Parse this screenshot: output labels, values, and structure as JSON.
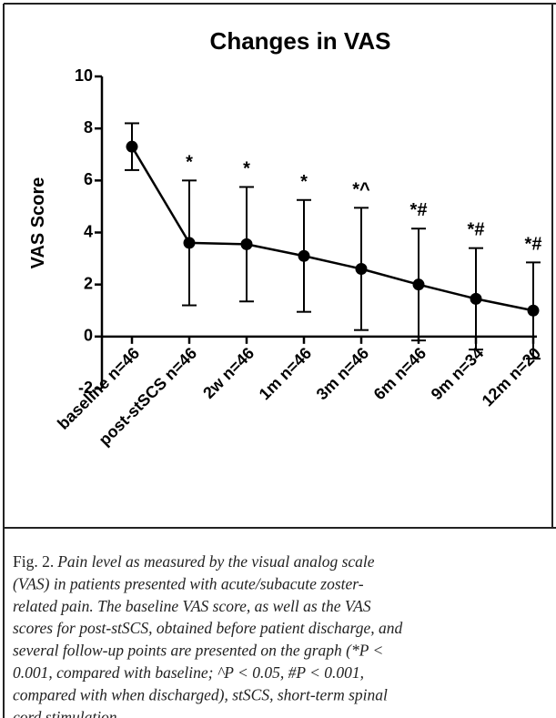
{
  "chart_data": {
    "type": "line",
    "title": "Changes in VAS",
    "y_label": "VAS Score",
    "categories": [
      "baseline n=46",
      "post-stSCS n=46",
      "2w n=46",
      "1m n=46",
      "3m n=46",
      "6m n=46",
      "9m n=34",
      "12m n=20"
    ],
    "values": [
      7.3,
      3.6,
      3.55,
      3.1,
      2.6,
      2.0,
      1.45,
      1.0
    ],
    "errors": [
      0.9,
      2.4,
      2.2,
      2.15,
      2.35,
      2.15,
      1.95,
      1.85
    ],
    "point_labels": [
      null,
      "*",
      "*",
      "*",
      "*^",
      "*#",
      "*#",
      "*#"
    ],
    "color": "#000000",
    "ylim": [
      -2,
      10
    ],
    "yticks": [
      10,
      8,
      6,
      4,
      2,
      0,
      -2
    ],
    "grid": false
  },
  "caption": {
    "label": "Fig. 2.",
    "lines": [
      "Pain level as measured by the visual analog scale",
      "(VAS) in patients presented with acute/subacute zoster-",
      "related pain. The baseline VAS score, as well as the VAS",
      "scores for post-stSCS, obtained before patient discharge, and",
      "several follow-up points are presented on the graph (*P <",
      "0.001, compared with baseline; ^P < 0.05, #P < 0.001,",
      "compared with when discharged), stSCS, short-term spinal",
      "cord stimulation."
    ]
  }
}
